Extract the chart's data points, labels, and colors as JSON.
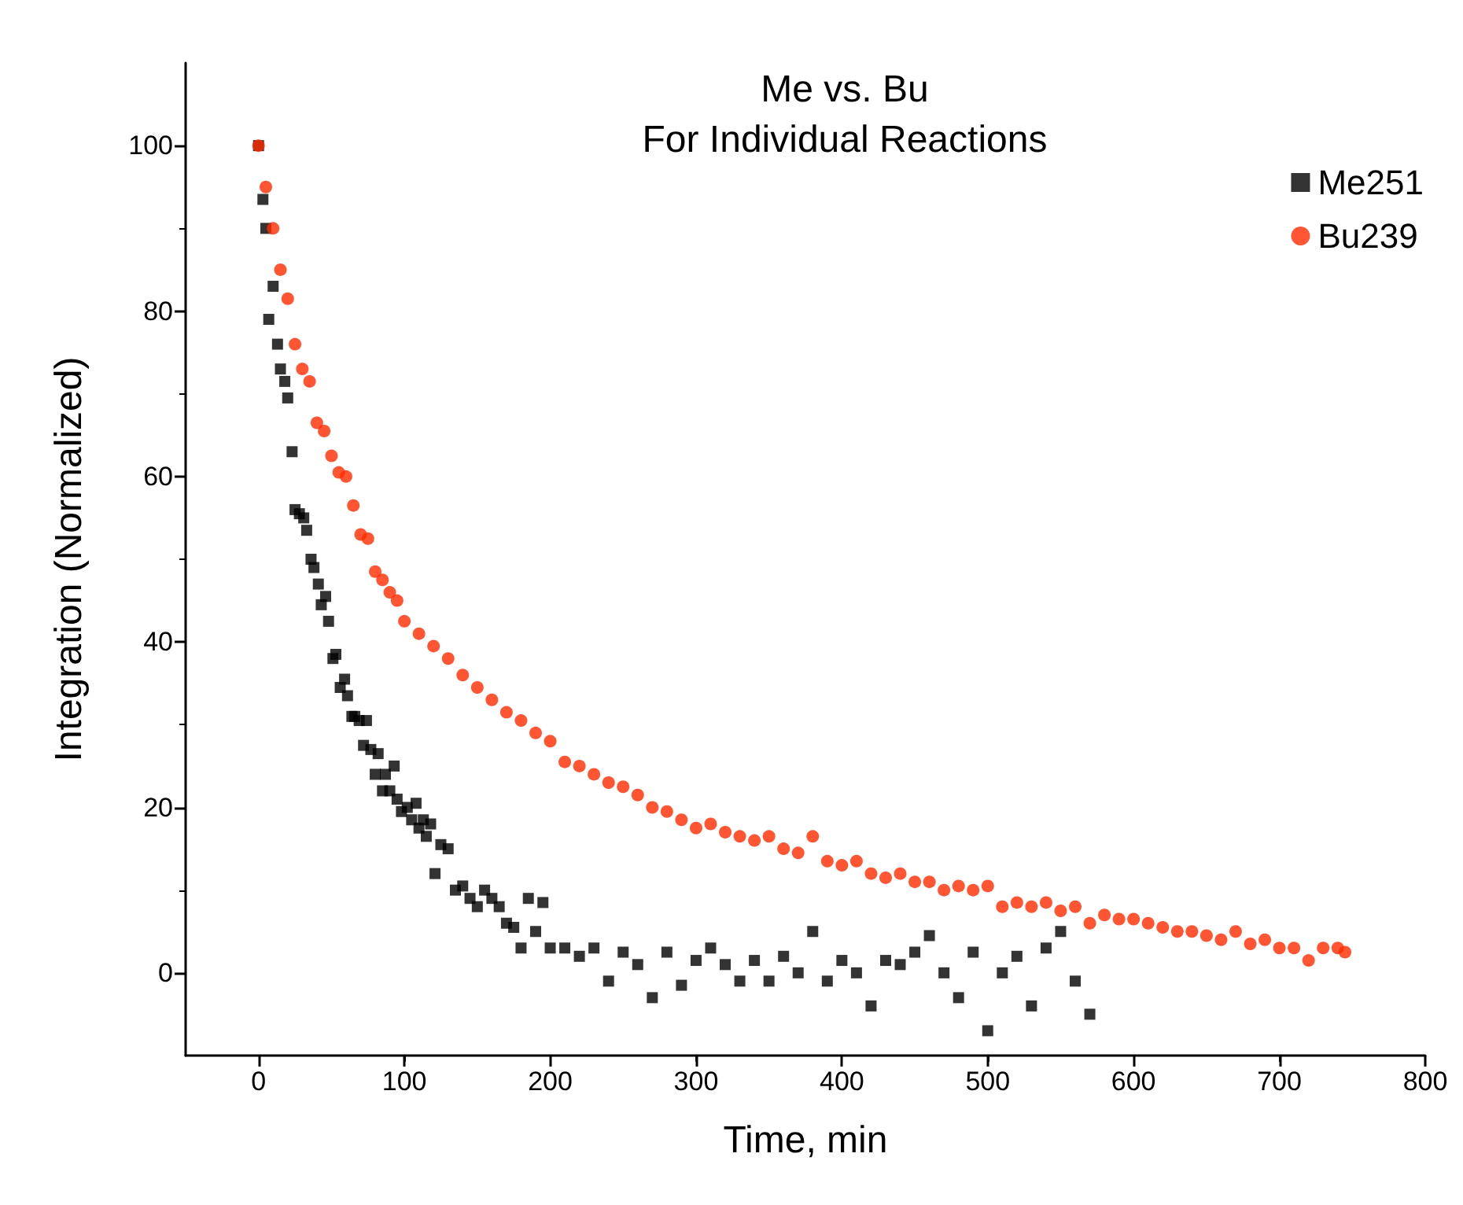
{
  "chart_data": {
    "type": "scatter",
    "title": "Me vs. Bu",
    "subtitle": "For Individual Reactions",
    "xlabel": "Time, min",
    "ylabel": "Integration (Normalized)",
    "xlim": [
      -50,
      800
    ],
    "xticks": [
      0,
      100,
      200,
      300,
      400,
      500,
      600,
      700,
      800
    ],
    "ylim": [
      -10,
      110
    ],
    "yticks": [
      0,
      20,
      40,
      60,
      80,
      100
    ],
    "grid": false,
    "legend": "top right",
    "series": [
      {
        "name": "Me251",
        "color": "#000000",
        "marker": "square",
        "x": [
          0,
          3,
          5,
          7,
          10,
          13,
          15,
          18,
          20,
          23,
          25,
          28,
          31,
          33,
          36,
          38,
          41,
          43,
          46,
          48,
          51,
          53,
          56,
          59,
          61,
          64,
          66,
          69,
          72,
          74,
          77,
          80,
          82,
          85,
          87,
          90,
          93,
          95,
          98,
          102,
          105,
          108,
          110,
          113,
          115,
          118,
          121,
          125,
          130,
          135,
          140,
          145,
          150,
          155,
          160,
          165,
          170,
          175,
          180,
          185,
          190,
          195,
          200,
          210,
          220,
          230,
          240,
          250,
          260,
          270,
          280,
          290,
          300,
          310,
          320,
          330,
          340,
          350,
          360,
          370,
          380,
          390,
          400,
          410,
          420,
          430,
          440,
          450,
          460,
          470,
          480,
          490,
          500,
          510,
          520,
          530,
          540,
          550,
          560,
          570
        ],
        "values": [
          100,
          93.5,
          90,
          79,
          83,
          76,
          73,
          71.5,
          69.5,
          63,
          56,
          55.5,
          55,
          53.5,
          50,
          49,
          47,
          44.5,
          45.5,
          42.5,
          38,
          38.5,
          34.5,
          35.5,
          33.5,
          31,
          31,
          30.5,
          27.5,
          30.5,
          27,
          24,
          26.5,
          22,
          24,
          22,
          25,
          21,
          19.5,
          20,
          18.5,
          20.5,
          17.5,
          18.5,
          16.5,
          18,
          12,
          15.5,
          15,
          10,
          10.5,
          9,
          8,
          10,
          9,
          8,
          6,
          5.5,
          3,
          9,
          5,
          8.5,
          3,
          3,
          2,
          3,
          -1,
          2.5,
          1,
          -3,
          2.5,
          -1.5,
          1.5,
          3,
          1,
          -1,
          1.5,
          -1,
          2,
          0,
          5,
          -1,
          1.5,
          0,
          -4,
          1.5,
          1,
          2.5,
          4.5,
          0,
          -3,
          2.5,
          -7,
          0,
          2,
          -4,
          3,
          5,
          -1,
          -5
        ]
      },
      {
        "name": "Bu239",
        "color": "#ff2a00",
        "marker": "circle",
        "x": [
          0,
          5,
          10,
          15,
          20,
          25,
          30,
          35,
          40,
          45,
          50,
          55,
          60,
          65,
          70,
          75,
          80,
          85,
          90,
          95,
          100,
          110,
          120,
          130,
          140,
          150,
          160,
          170,
          180,
          190,
          200,
          210,
          220,
          230,
          240,
          250,
          260,
          270,
          280,
          290,
          300,
          310,
          320,
          330,
          340,
          350,
          360,
          370,
          380,
          390,
          400,
          410,
          420,
          430,
          440,
          450,
          460,
          470,
          480,
          490,
          500,
          510,
          520,
          530,
          540,
          550,
          560,
          570,
          580,
          590,
          600,
          610,
          620,
          630,
          640,
          650,
          660,
          670,
          680,
          690,
          700,
          710,
          720,
          730,
          740,
          745
        ],
        "values": [
          100,
          95,
          90,
          85,
          81.5,
          76,
          73,
          71.5,
          66.5,
          65.5,
          62.5,
          60.5,
          60,
          56.5,
          53,
          52.5,
          48.5,
          47.5,
          46,
          45,
          42.5,
          41,
          39.5,
          38,
          36,
          34.5,
          33,
          31.5,
          30.5,
          29,
          28,
          25.5,
          25,
          24,
          23,
          22.5,
          21.5,
          20,
          19.5,
          18.5,
          17.5,
          18,
          17,
          16.5,
          16,
          16.5,
          15,
          14.5,
          16.5,
          13.5,
          13,
          13.5,
          12,
          11.5,
          12,
          11,
          11,
          10,
          10.5,
          10,
          10.5,
          8,
          8.5,
          8,
          8.5,
          7.5,
          8,
          6,
          7,
          6.5,
          6.5,
          6,
          5.5,
          5,
          5,
          4.5,
          4,
          5,
          3.5,
          4,
          3,
          3,
          1.5,
          3,
          3,
          2.5
        ]
      }
    ]
  }
}
